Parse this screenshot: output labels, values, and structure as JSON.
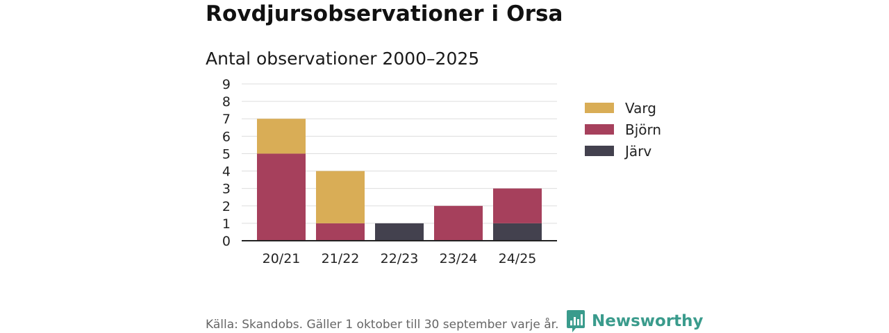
{
  "title": "Rovdjursobservationer i Orsa",
  "source": "Källa: Skandobs. Gäller 1 oktober till 30 september varje år.",
  "brand": {
    "name": "Newsworthy",
    "icon": "newsworthy-logo-icon",
    "color": "#3a9b8c"
  },
  "chart_data": {
    "type": "bar",
    "stacked": true,
    "title": "Antal observationer 2000–2025",
    "xlabel": "",
    "ylabel": "",
    "ylim": [
      0,
      9
    ],
    "yticks": [
      0,
      1,
      2,
      3,
      4,
      5,
      6,
      7,
      8,
      9
    ],
    "grid": true,
    "legend_position": "right",
    "categories": [
      "20/21",
      "21/22",
      "22/23",
      "23/24",
      "24/25"
    ],
    "series": [
      {
        "name": "Järv",
        "color": "#43414e",
        "values": [
          0,
          0,
          1,
          0,
          1
        ]
      },
      {
        "name": "Björn",
        "color": "#a6405c",
        "values": [
          5,
          1,
          0,
          2,
          2
        ]
      },
      {
        "name": "Varg",
        "color": "#d9ad56",
        "values": [
          2,
          3,
          0,
          0,
          0
        ]
      }
    ],
    "legend_order": [
      "Varg",
      "Björn",
      "Järv"
    ]
  }
}
